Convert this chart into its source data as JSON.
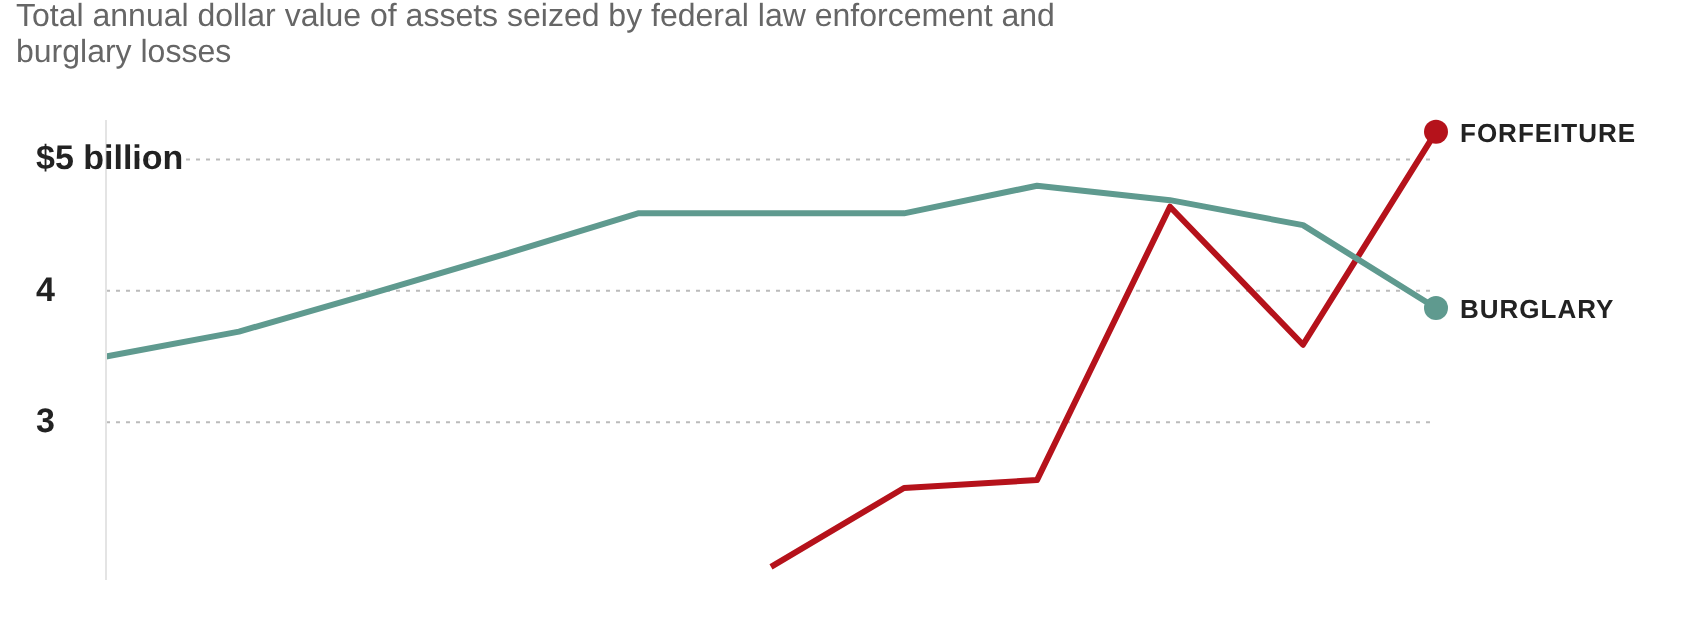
{
  "chart_data": {
    "type": "line",
    "title": "Total annual dollar value of assets seized by federal law enforcement and burglary losses",
    "categories": [
      null,
      null,
      null,
      null,
      null,
      null,
      null,
      null,
      null,
      null,
      null
    ],
    "series": [
      {
        "name": "FORFEITURE",
        "color": "#b5121b",
        "values": [
          null,
          null,
          null,
          null,
          null,
          1.9,
          2.5,
          2.56,
          4.64,
          3.59,
          5.21
        ]
      },
      {
        "name": "BURGLARY",
        "color": "#5f9a8f",
        "values": [
          3.5,
          3.69,
          3.98,
          4.28,
          4.59,
          4.59,
          4.59,
          4.8,
          4.69,
          4.5,
          3.87
        ]
      }
    ],
    "ylim": [
      1.8,
      5.3
    ],
    "yticks": [
      3,
      4,
      {
        "value": 5,
        "label": "$5 billion"
      }
    ],
    "grid": "y",
    "tick_labels": "y"
  }
}
